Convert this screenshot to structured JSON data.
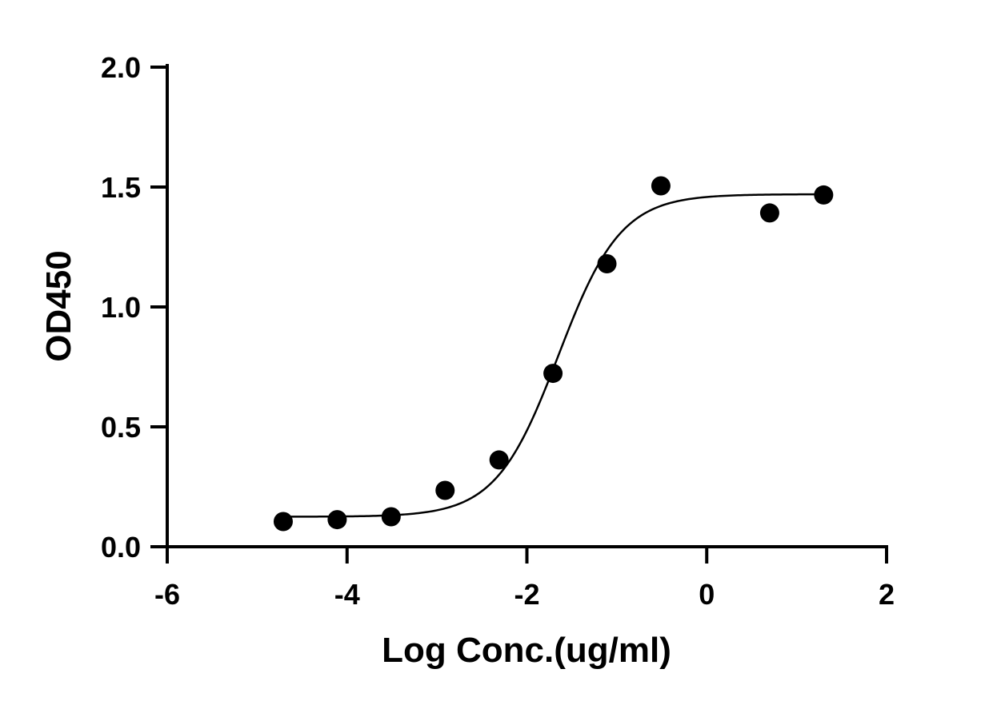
{
  "chart_data": {
    "type": "scatter",
    "title": "",
    "xlabel": "Log Conc.(ug/ml)",
    "ylabel": "OD450",
    "xlim": [
      -6,
      2
    ],
    "ylim": [
      0,
      2
    ],
    "x_ticks": [
      -6,
      -4,
      -2,
      0,
      2
    ],
    "x_tick_labels": [
      "-6",
      "-4",
      "-2",
      "0",
      "2"
    ],
    "y_ticks": [
      0,
      0.5,
      1,
      1.5,
      2
    ],
    "y_tick_labels": [
      "0.0",
      "0.5",
      "1.0",
      "1.5",
      "2.0"
    ],
    "grid": false,
    "legend": "none",
    "point_color": "#000000",
    "series": [
      {
        "points": [
          {
            "x": -4.71,
            "y": 0.105
          },
          {
            "x": -4.11,
            "y": 0.113
          },
          {
            "x": -3.51,
            "y": 0.125
          },
          {
            "x": -2.91,
            "y": 0.235
          },
          {
            "x": -2.31,
            "y": 0.362
          },
          {
            "x": -1.71,
            "y": 0.723
          },
          {
            "x": -1.11,
            "y": 1.18
          },
          {
            "x": -0.51,
            "y": 1.505
          },
          {
            "x": 0.7,
            "y": 1.392
          },
          {
            "x": 1.3,
            "y": 1.467
          }
        ]
      }
    ],
    "fit": {
      "type": "4PL",
      "bottom": 0.125,
      "top": 1.47,
      "logEC50": -1.65,
      "hill": 1.25,
      "x_range": [
        -4.71,
        1.3
      ]
    }
  }
}
